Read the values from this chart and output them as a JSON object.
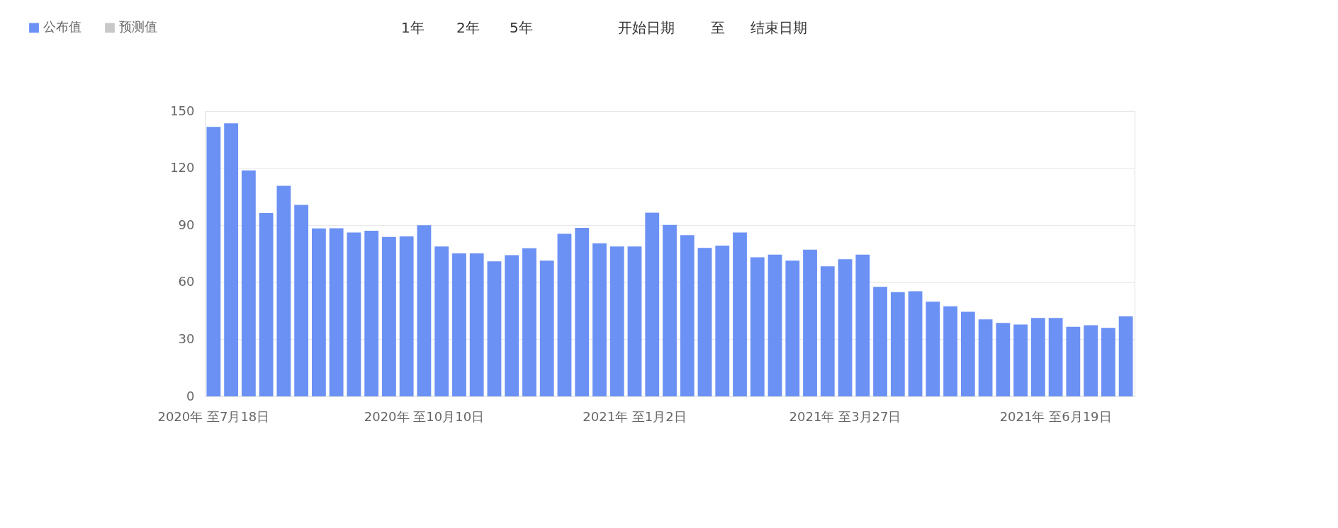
{
  "chart_data": {
    "type": "bar",
    "categories": [
      "2020年 至7月18日",
      null,
      null,
      null,
      null,
      null,
      null,
      null,
      null,
      null,
      null,
      null,
      "2020年 至10月10日",
      null,
      null,
      null,
      null,
      null,
      null,
      null,
      null,
      null,
      null,
      null,
      "2021年 至1月2日",
      null,
      null,
      null,
      null,
      null,
      null,
      null,
      null,
      null,
      null,
      null,
      "2021年 至3月27日",
      null,
      null,
      null,
      null,
      null,
      null,
      null,
      null,
      null,
      null,
      null,
      "2021年 至6月19日",
      null,
      null,
      null,
      null
    ],
    "series": [
      {
        "name": "公布值",
        "color": "#6b91f5",
        "values": [
          141.7,
          143.6,
          118.8,
          96.4,
          110.7,
          100.7,
          88.3,
          88.4,
          86.2,
          87.1,
          83.8,
          84.1,
          90,
          78.8,
          75.2,
          75.2,
          71,
          74.3,
          77.9,
          71.4,
          85.5,
          88.6,
          80.5,
          78.8,
          78.8,
          96.6,
          90.2,
          84.8,
          78.1,
          79.3,
          86.2,
          73.1,
          74.5,
          71.4,
          77.1,
          68.4,
          72.1,
          74.5,
          57.6,
          54.8,
          55.3,
          49.8,
          47.4,
          44.5,
          40.5,
          38.6,
          37.8,
          41.2,
          41.2,
          36.6,
          37.4,
          36.0,
          42.1
        ]
      },
      {
        "name": "预测值",
        "type": "line",
        "color": "#c8c8c8",
        "values": [
          null,
          null,
          null,
          null,
          null,
          null,
          null,
          null,
          null,
          null,
          null,
          null,
          null,
          null,
          null,
          null,
          null,
          null,
          null,
          null,
          null,
          null,
          null,
          null,
          null,
          null,
          null,
          null,
          null,
          null,
          null,
          null,
          null,
          null,
          null,
          null,
          null,
          null,
          null,
          null,
          null,
          null,
          null,
          null,
          null,
          null,
          null,
          null,
          null,
          null,
          null,
          null,
          null
        ]
      }
    ],
    "ylim": [
      0,
      150
    ],
    "yticks": [
      0,
      30,
      60,
      90,
      120,
      150
    ],
    "grid": "y",
    "legend": "top left",
    "annotations": [
      "1年",
      "2年",
      "5年",
      "开始日期",
      "至",
      "结束日期"
    ]
  }
}
